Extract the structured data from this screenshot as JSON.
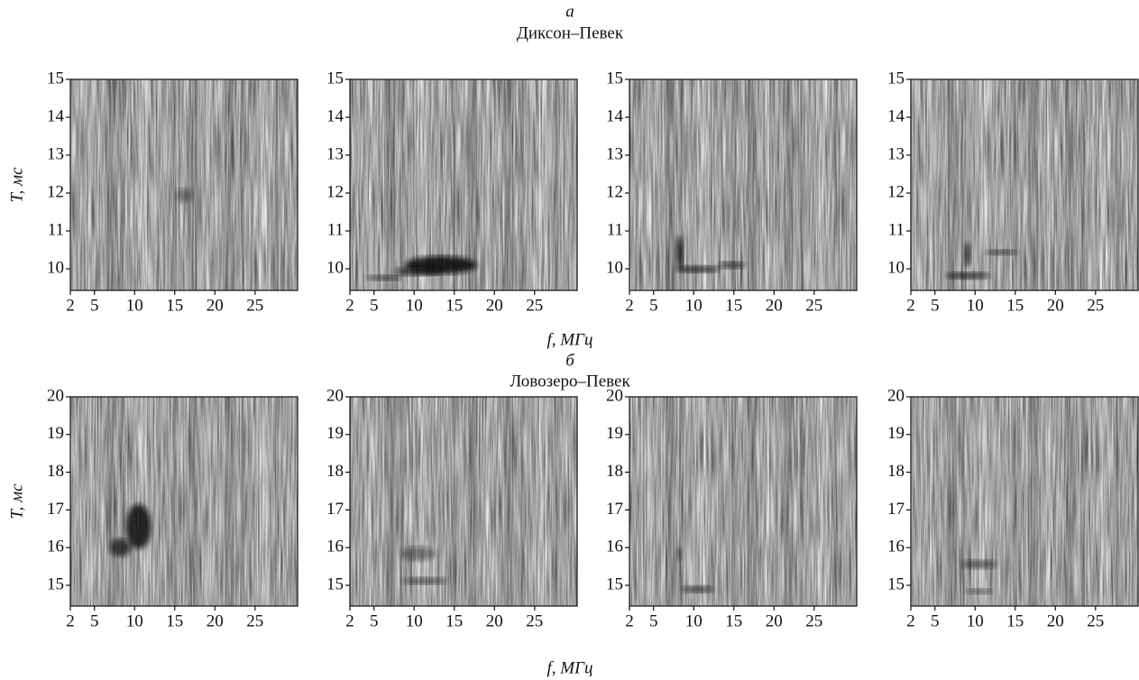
{
  "figure": {
    "rows": [
      {
        "letter": "а",
        "title": "Диксон–Певек",
        "xlabel": "f, МГц",
        "ylabel": "T, мс",
        "panels": [
          {
            "type": "heatmap",
            "xlim": [
              2,
              30.3
            ],
            "ylim": [
              9.43,
              15
            ],
            "xticks": [
              2,
              5,
              10,
              15,
              20,
              25
            ],
            "yticks": [
              10,
              11,
              12,
              13,
              14,
              15
            ]
          },
          {
            "type": "heatmap",
            "xlim": [
              2,
              30.3
            ],
            "ylim": [
              9.43,
              15
            ],
            "xticks": [
              2,
              5,
              10,
              15,
              20,
              25
            ],
            "yticks": [
              10,
              11,
              12,
              13,
              14,
              15
            ]
          },
          {
            "type": "heatmap",
            "xlim": [
              2,
              30.3
            ],
            "ylim": [
              9.43,
              15
            ],
            "xticks": [
              2,
              5,
              10,
              15,
              20,
              25
            ],
            "yticks": [
              10,
              11,
              12,
              13,
              14,
              15
            ]
          },
          {
            "type": "heatmap",
            "xlim": [
              2,
              30.3
            ],
            "ylim": [
              9.43,
              15
            ],
            "xticks": [
              2,
              5,
              10,
              15,
              20,
              25
            ],
            "yticks": [
              10,
              11,
              12,
              13,
              14,
              15
            ]
          }
        ]
      },
      {
        "letter": "б",
        "title": "Ловозеро–Певек",
        "xlabel": "f, МГц",
        "ylabel": "T, мс",
        "panels": [
          {
            "type": "heatmap",
            "xlim": [
              2,
              30.3
            ],
            "ylim": [
              14.45,
              20
            ],
            "xticks": [
              2,
              5,
              10,
              15,
              20,
              25
            ],
            "yticks": [
              15,
              16,
              17,
              18,
              19,
              20
            ]
          },
          {
            "type": "heatmap",
            "xlim": [
              2,
              30.3
            ],
            "ylim": [
              14.45,
              20
            ],
            "xticks": [
              2,
              5,
              10,
              15,
              20,
              25
            ],
            "yticks": [
              15,
              16,
              17,
              18,
              19,
              20
            ]
          },
          {
            "type": "heatmap",
            "xlim": [
              2,
              30.3
            ],
            "ylim": [
              14.45,
              20
            ],
            "xticks": [
              2,
              5,
              10,
              15,
              20,
              25
            ],
            "yticks": [
              15,
              16,
              17,
              18,
              19,
              20
            ]
          },
          {
            "type": "heatmap",
            "xlim": [
              2,
              30.3
            ],
            "ylim": [
              14.45,
              20
            ],
            "xticks": [
              2,
              5,
              10,
              15,
              20,
              25
            ],
            "yticks": [
              15,
              16,
              17,
              18,
              19,
              20
            ]
          }
        ]
      }
    ]
  }
}
